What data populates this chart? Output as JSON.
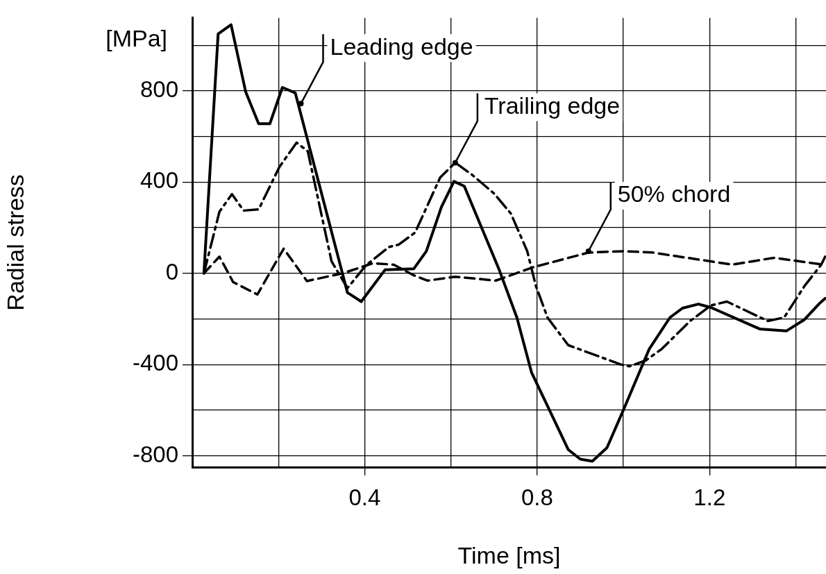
{
  "chart_data": {
    "type": "line",
    "xlabel": "Time [ms]",
    "ylabel": "Radial stress",
    "xlim": [
      0,
      1.47
    ],
    "ylim": [
      -850,
      1120
    ],
    "xticks": [
      {
        "value": 0.2,
        "label": null
      },
      0.4,
      {
        "value": 0.6,
        "label": null
      },
      0.8,
      {
        "value": 1.0,
        "label": null
      },
      1.2,
      {
        "value": 1.4,
        "label": null
      }
    ],
    "yticks": [
      -800,
      {
        "value": -600,
        "label": null
      },
      -400,
      {
        "value": -200,
        "label": null
      },
      0,
      {
        "value": 200,
        "label": null
      },
      400,
      {
        "value": 600,
        "label": null
      },
      800,
      {
        "value": 1000,
        "label": null
      }
    ],
    "grid": true,
    "legend": false,
    "marker": "none",
    "series": [
      {
        "color": "#000000",
        "line_style": "solid",
        "x": [
          0.027,
          0.06,
          0.09,
          0.124,
          0.154,
          0.18,
          0.209,
          0.239,
          0.36,
          0.392,
          0.447,
          0.514,
          0.543,
          0.578,
          0.607,
          0.631,
          0.712,
          0.753,
          0.787,
          0.824,
          0.872,
          0.9,
          0.928,
          0.962,
          1.004,
          1.06,
          1.108,
          1.137,
          1.174,
          1.203,
          1.316,
          1.378,
          1.42,
          1.455,
          1.468
        ],
        "values": [
          0,
          1050,
          1090,
          795,
          656,
          656,
          815,
          791,
          -85,
          -124,
          15,
          20,
          97,
          291,
          403,
          382,
          15,
          -194,
          -435,
          -582,
          -773,
          -815,
          -824,
          -765,
          -582,
          -332,
          -194,
          -153,
          -135,
          -150,
          -244,
          -253,
          -203,
          -132,
          -110
        ]
      },
      {
        "color": "#000000",
        "line_style": "dashdot",
        "x": [
          0.027,
          0.063,
          0.092,
          0.119,
          0.154,
          0.202,
          0.242,
          0.268,
          0.323,
          0.36,
          0.403,
          0.456,
          0.479,
          0.517,
          0.575,
          0.61,
          0.649,
          0.7,
          0.739,
          0.777,
          0.797,
          0.824,
          0.872,
          0.994,
          1.014,
          1.052,
          1.089,
          1.155,
          1.203,
          1.24,
          1.298,
          1.335,
          1.373,
          1.42,
          1.459,
          1.468
        ],
        "values": [
          0,
          270,
          347,
          275,
          280,
          466,
          573,
          535,
          53,
          -65,
          35,
          115,
          126,
          179,
          420,
          485,
          432,
          350,
          262,
          97,
          -55,
          -194,
          -315,
          -400,
          -408,
          -382,
          -332,
          -209,
          -141,
          -124,
          -176,
          -209,
          -194,
          -56,
          38,
          73
        ]
      },
      {
        "color": "#000000",
        "line_style": "dashed",
        "x": [
          0.027,
          0.063,
          0.095,
          0.151,
          0.212,
          0.266,
          0.349,
          0.419,
          0.467,
          0.514,
          0.546,
          0.61,
          0.704,
          0.79,
          0.919,
          1.002,
          1.067,
          1.253,
          1.349,
          1.463
        ],
        "values": [
          0,
          73,
          -39,
          -93,
          108,
          -34,
          0,
          44,
          38,
          -9,
          -32,
          -15,
          -32,
          26,
          91,
          97,
          91,
          38,
          68,
          38
        ]
      }
    ],
    "annotations": [
      "[MPa]",
      {
        "text": "Leading edge",
        "x": 0.252,
        "y": 744
      },
      {
        "text": "Trailing edge",
        "x": 0.61,
        "y": 485
      },
      {
        "text": "50% chord",
        "x": 0.919,
        "y": 97
      }
    ]
  }
}
